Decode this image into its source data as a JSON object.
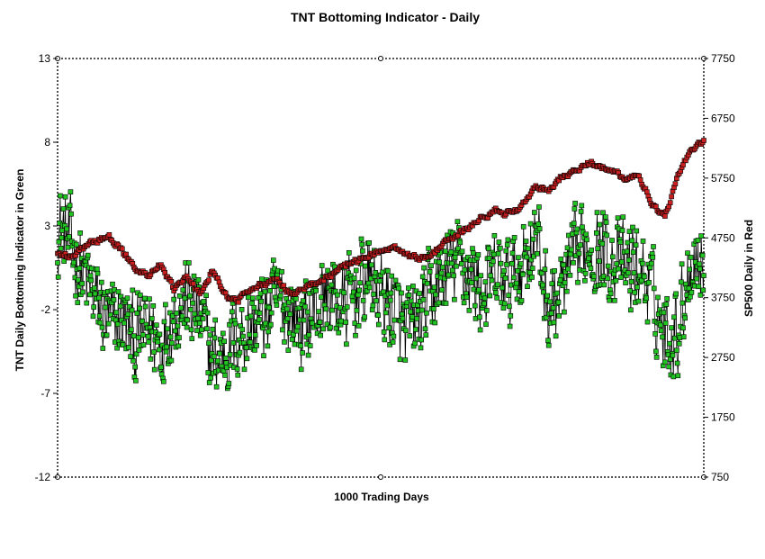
{
  "chart_data": {
    "type": "scatter",
    "title": "TNT Bottoming Indicator - Daily",
    "xlabel": "1000 Trading Days",
    "ylabel_left": "TNT Daily Bottoming Indicator in Green",
    "ylabel_right": "SP500 Daily in Red",
    "x_range": [
      0,
      1000
    ],
    "ylim_left": [
      -12,
      13
    ],
    "ylim_right": [
      750,
      7750
    ],
    "left_ticks": [
      13,
      8,
      3,
      -2,
      -7,
      -12
    ],
    "right_ticks": [
      7750,
      6750,
      5750,
      4750,
      3750,
      2750,
      1750,
      750
    ],
    "grid": false,
    "series": [
      {
        "axis": "left",
        "color": "#22c422",
        "anchors": [
          [
            0,
            3.0
          ],
          [
            20,
            2.0
          ],
          [
            40,
            0.0
          ],
          [
            60,
            -1.5
          ],
          [
            80,
            -3.0
          ],
          [
            100,
            -2.5
          ],
          [
            120,
            -4.0
          ],
          [
            140,
            -3.0
          ],
          [
            160,
            -4.0
          ],
          [
            180,
            -2.0
          ],
          [
            200,
            -1.5
          ],
          [
            220,
            -2.5
          ],
          [
            240,
            -5.0
          ],
          [
            260,
            -4.5
          ],
          [
            280,
            -3.5
          ],
          [
            300,
            -3.0
          ],
          [
            320,
            -2.5
          ],
          [
            340,
            -1.5
          ],
          [
            360,
            -2.0
          ],
          [
            380,
            -3.0
          ],
          [
            400,
            -2.0
          ],
          [
            420,
            -1.0
          ],
          [
            440,
            -2.0
          ],
          [
            460,
            -1.0
          ],
          [
            480,
            0.0
          ],
          [
            500,
            -1.0
          ],
          [
            520,
            -2.0
          ],
          [
            540,
            -3.5
          ],
          [
            560,
            -2.5
          ],
          [
            580,
            -1.0
          ],
          [
            600,
            0.0
          ],
          [
            620,
            1.0
          ],
          [
            640,
            0.0
          ],
          [
            660,
            -1.0
          ],
          [
            680,
            0.0
          ],
          [
            700,
            -0.5
          ],
          [
            720,
            1.0
          ],
          [
            740,
            2.5
          ],
          [
            760,
            -2.0
          ],
          [
            780,
            -1.0
          ],
          [
            800,
            1.0
          ],
          [
            820,
            2.0
          ],
          [
            840,
            1.5
          ],
          [
            860,
            1.0
          ],
          [
            880,
            0.5
          ],
          [
            900,
            0.5
          ],
          [
            920,
            -1.0
          ],
          [
            940,
            -3.5
          ],
          [
            960,
            -3.0
          ],
          [
            980,
            1.0
          ],
          [
            1000,
            1.0
          ]
        ],
        "amplitude": 2.3
      },
      {
        "axis": "right",
        "color": "#cc2020",
        "anchors": [
          [
            0,
            4500
          ],
          [
            20,
            4400
          ],
          [
            40,
            4600
          ],
          [
            60,
            4700
          ],
          [
            80,
            4750
          ],
          [
            100,
            4550
          ],
          [
            120,
            4200
          ],
          [
            140,
            4150
          ],
          [
            160,
            4300
          ],
          [
            180,
            3900
          ],
          [
            200,
            4100
          ],
          [
            220,
            3800
          ],
          [
            240,
            4200
          ],
          [
            260,
            3800
          ],
          [
            280,
            3700
          ],
          [
            300,
            3900
          ],
          [
            320,
            4000
          ],
          [
            340,
            4100
          ],
          [
            360,
            3800
          ],
          [
            380,
            3900
          ],
          [
            400,
            4000
          ],
          [
            420,
            4100
          ],
          [
            440,
            4300
          ],
          [
            460,
            4350
          ],
          [
            480,
            4450
          ],
          [
            500,
            4500
          ],
          [
            520,
            4600
          ],
          [
            540,
            4500
          ],
          [
            560,
            4400
          ],
          [
            580,
            4500
          ],
          [
            600,
            4700
          ],
          [
            620,
            4800
          ],
          [
            640,
            4950
          ],
          [
            660,
            5100
          ],
          [
            680,
            5200
          ],
          [
            700,
            5150
          ],
          [
            720,
            5300
          ],
          [
            740,
            5600
          ],
          [
            760,
            5550
          ],
          [
            780,
            5750
          ],
          [
            800,
            5850
          ],
          [
            820,
            6000
          ],
          [
            840,
            5950
          ],
          [
            860,
            5850
          ],
          [
            880,
            5750
          ],
          [
            900,
            5800
          ],
          [
            920,
            5300
          ],
          [
            940,
            5100
          ],
          [
            960,
            5800
          ],
          [
            980,
            6200
          ],
          [
            1000,
            6400
          ]
        ],
        "amplitude": 60
      }
    ]
  }
}
